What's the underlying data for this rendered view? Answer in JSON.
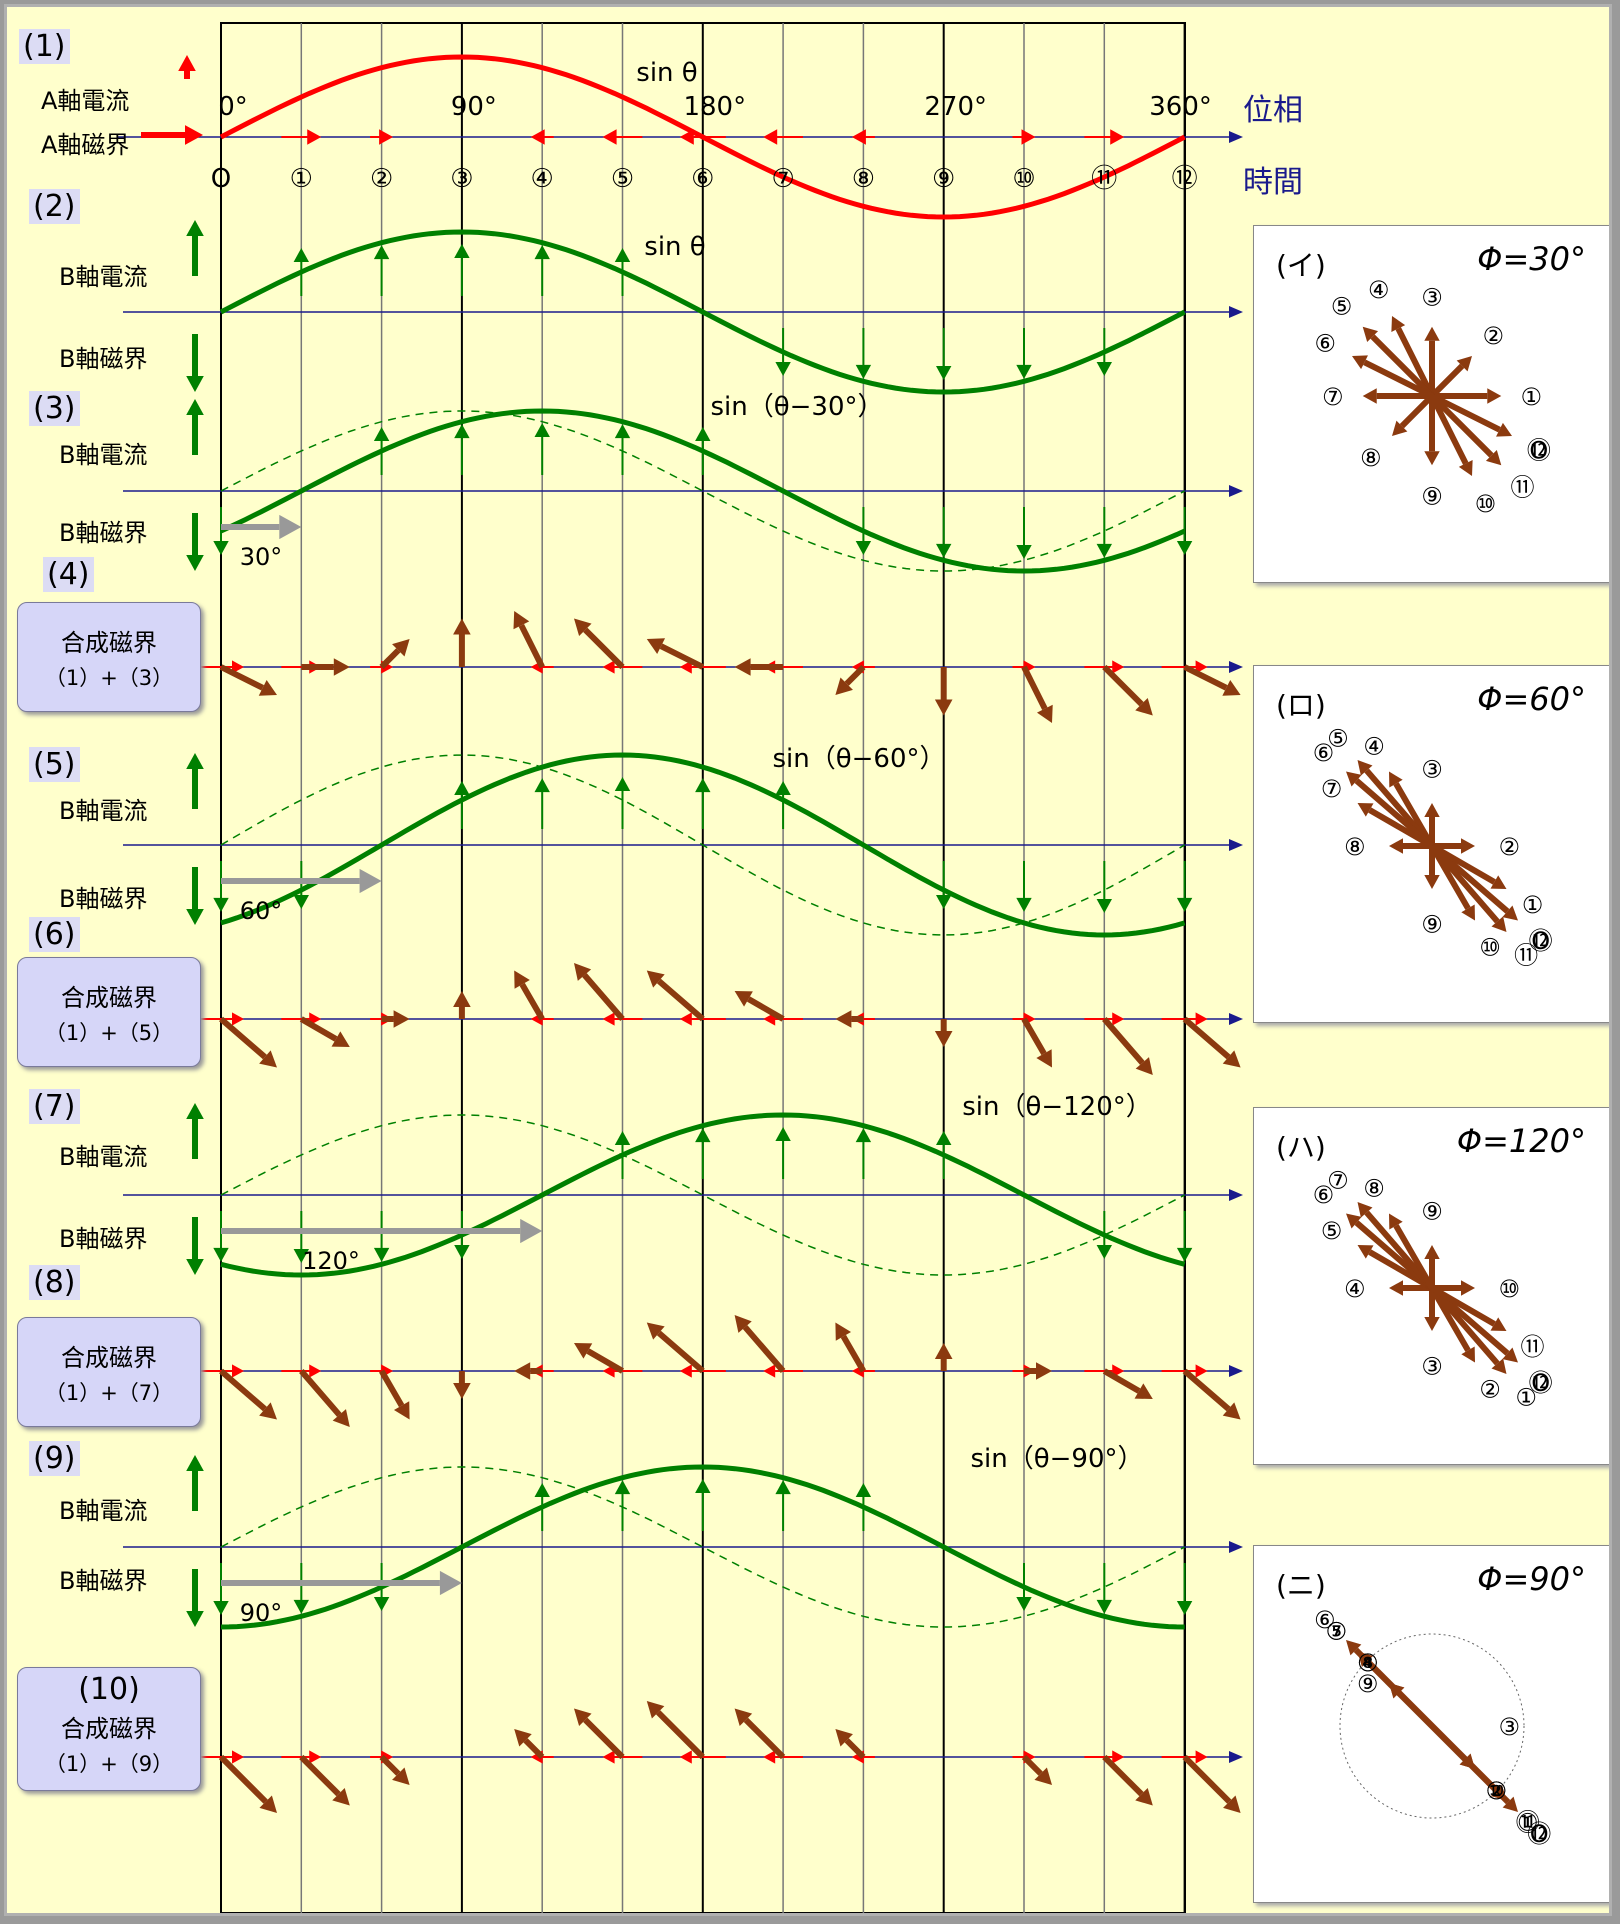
{
  "sections": {
    "s1": {
      "num": "(1)",
      "current": "A軸電流",
      "field": "A軸磁界"
    },
    "s2": {
      "num": "(2)",
      "current": "B軸電流",
      "field": "B軸磁界",
      "formula": "sin θ"
    },
    "s3": {
      "num": "(3)",
      "current": "B軸電流",
      "field": "B軸磁界",
      "formula": "sin（θ−30°）",
      "shift": "30°"
    },
    "s4": {
      "num": "(4)",
      "box_title": "合成磁界",
      "box_sub": "（1）+（3）"
    },
    "s5": {
      "num": "(5)",
      "current": "B軸電流",
      "field": "B軸磁界",
      "formula": "sin（θ−60°）",
      "shift": "60°"
    },
    "s6": {
      "num": "(6)",
      "box_title": "合成磁界",
      "box_sub": "（1）+（5）"
    },
    "s7": {
      "num": "(7)",
      "current": "B軸電流",
      "field": "B軸磁界",
      "formula": "sin（θ−120°）",
      "shift": "120°"
    },
    "s8": {
      "num": "(8)",
      "box_title": "合成磁界",
      "box_sub": "（1）+（7）"
    },
    "s9": {
      "num": "(9)",
      "current": "B軸電流",
      "field": "B軸磁界",
      "formula": "sin（θ−90°）",
      "shift": "90°"
    },
    "s10": {
      "num": "(10)",
      "box_title": "合成磁界",
      "box_sub": "（1）+（9）"
    }
  },
  "top": {
    "formula": "sin θ",
    "phase_label": "位相",
    "time_label": "時間",
    "phase_ticks": [
      "0°",
      "90°",
      "180°",
      "270°",
      "360°"
    ],
    "time_ticks": [
      "O",
      "①",
      "②",
      "③",
      "④",
      "⑤",
      "⑥",
      "⑦",
      "⑧",
      "⑨",
      "⑩",
      "⑪",
      "⑫"
    ]
  },
  "panels": [
    {
      "title": "(イ)",
      "phi": "Φ=30°",
      "labels": [
        "O",
        "①",
        "②",
        "③",
        "④",
        "⑤",
        "⑥",
        "⑦",
        "⑧",
        "⑨",
        "⑩",
        "⑪",
        "⑫"
      ]
    },
    {
      "title": "(ロ)",
      "phi": "Φ=60°",
      "labels": [
        "O",
        "①",
        "②",
        "③",
        "④",
        "⑤",
        "⑥",
        "⑦",
        "⑧",
        "⑨",
        "⑩",
        "⑪",
        "⑫"
      ]
    },
    {
      "title": "(ハ)",
      "phi": "Φ=120°",
      "labels": [
        "O",
        "①",
        "②",
        "③",
        "④",
        "⑤",
        "⑥",
        "⑦",
        "⑧",
        "⑨",
        "⑩",
        "⑪",
        "⑫"
      ]
    },
    {
      "title": "(ニ)",
      "phi": "Φ=90°",
      "labels": [
        "O",
        "①",
        "②",
        "③",
        "④",
        "⑤",
        "⑥",
        "⑦",
        "⑧",
        "⑨",
        "⑩",
        "⑪",
        "⑫"
      ]
    }
  ],
  "colors": {
    "a_axis": "#ff0000",
    "b_axis": "#008000",
    "resultant": "#8b3a0f",
    "shift_arrow": "#999999",
    "axis_line": "#1a1a8c"
  }
}
